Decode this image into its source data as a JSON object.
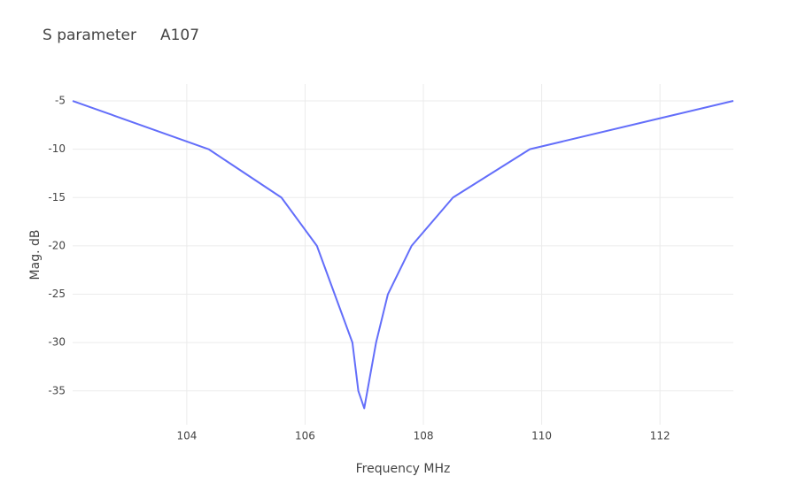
{
  "chart_data": {
    "type": "line",
    "title": "S parameter     A107",
    "x_label": "Frequency MHz",
    "y_label": "Mag. dB",
    "x": [
      102.07,
      104.37,
      105.6,
      106.2,
      106.8,
      106.9,
      107.0,
      107.2,
      107.4,
      107.8,
      108.5,
      109.8,
      113.24
    ],
    "series": [
      {
        "name": "A107",
        "color": "#636efa",
        "values": [
          -5,
          -10,
          -15,
          -20,
          -30,
          -35,
          -36.8,
          -30,
          -25,
          -20,
          -15,
          -10,
          -5
        ]
      }
    ],
    "xlim": [
      102.07,
      113.24
    ],
    "xticks": [
      104,
      106,
      108,
      110,
      112
    ],
    "ylim": [
      -38.5,
      -3.26
    ],
    "yticks": [
      -5,
      -10,
      -15,
      -20,
      -25,
      -30,
      -35
    ],
    "grid": true
  }
}
